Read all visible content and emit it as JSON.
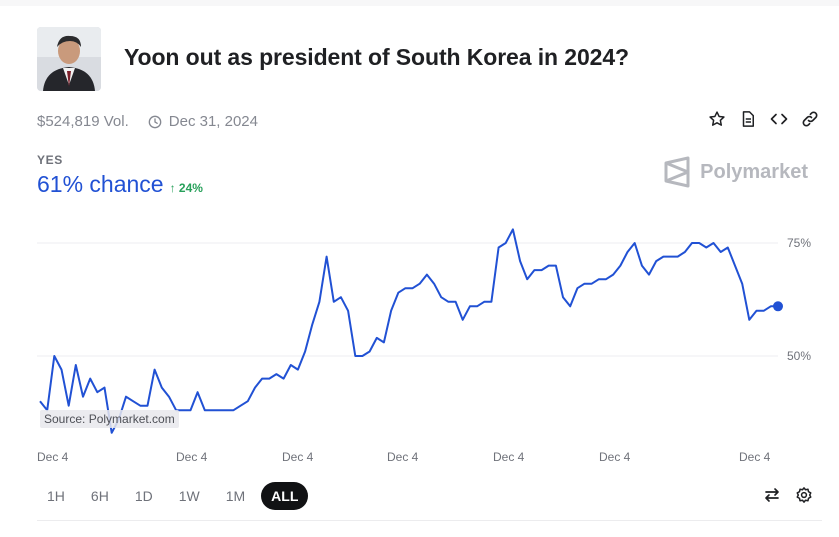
{
  "market": {
    "title": "Yoon out as president of South Korea in 2024?",
    "volume": "$524,819 Vol.",
    "end_date": "Dec 31, 2024"
  },
  "outcome": {
    "label": "YES",
    "chance": "61% chance",
    "change": "↑ 24%"
  },
  "brand": {
    "name": "Polymarket"
  },
  "actions": [
    "star-icon",
    "document-icon",
    "code-embed-icon",
    "link-icon"
  ],
  "chart": {
    "source": "Source: Polymarket.com",
    "y_labels": [
      "75%",
      "50%"
    ],
    "x_labels": [
      "Dec 4",
      "Dec 4",
      "Dec 4",
      "Dec 4",
      "Dec 4",
      "Dec 4",
      "Dec 4"
    ]
  },
  "chart_data": {
    "type": "line",
    "title": "",
    "xlabel": "",
    "ylabel": "",
    "ylim": [
      32,
      80
    ],
    "y_ticks": [
      50,
      75
    ],
    "x_ticks": [
      "Dec 4",
      "Dec 4",
      "Dec 4",
      "Dec 4",
      "Dec 4",
      "Dec 4",
      "Dec 4"
    ],
    "grid": true,
    "series": [
      {
        "color": "#2151d4",
        "values": [
          40,
          38,
          50,
          47,
          39,
          48,
          41,
          45,
          42,
          43,
          33,
          36,
          41,
          40,
          39,
          39,
          47,
          43,
          41,
          38,
          38,
          38,
          42,
          38,
          38,
          38,
          38,
          38,
          39,
          40,
          43,
          45,
          45,
          46,
          45,
          48,
          47,
          51,
          57,
          62,
          72,
          62,
          63,
          60,
          50,
          50,
          51,
          54,
          53,
          60,
          64,
          65,
          65,
          66,
          68,
          66,
          63,
          62,
          62,
          58,
          61,
          61,
          62,
          62,
          74,
          75,
          78,
          71,
          67,
          69,
          69,
          70,
          70,
          63,
          61,
          65,
          66,
          66,
          67,
          67,
          68,
          70,
          73,
          75,
          70,
          68,
          71,
          72,
          72,
          72,
          73,
          75,
          75,
          74,
          75,
          73,
          74,
          70,
          66,
          58,
          60,
          60,
          61,
          61
        ]
      }
    ]
  },
  "time_ranges": [
    "1H",
    "6H",
    "1D",
    "1W",
    "1M",
    "ALL"
  ],
  "active_range": "ALL",
  "tools": [
    "swap-icon",
    "settings-icon"
  ]
}
